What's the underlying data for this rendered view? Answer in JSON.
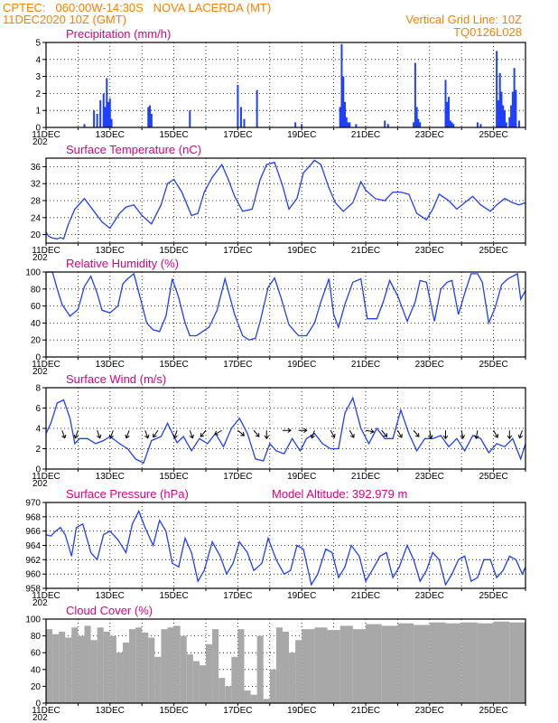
{
  "header": {
    "line1_left": "CPTEC:   060:00W-14:30S   NOVA LACERDA (MT)",
    "line2_left": "11DEC2020 10Z (GMT)",
    "line2_right": "Vertical Grid Line: 10Z",
    "line3_right": "TQ0126L028"
  },
  "colors": {
    "header": "#ff7f00",
    "panel_title": "#e0007f",
    "series": "#1f3fff",
    "cloud": "#a8a8a8",
    "wind_arrow": "#000000"
  },
  "x_axis": {
    "start": "2020-12-11T10Z",
    "end": "2020-12-26T10Z",
    "tick_labels": [
      "11DEC",
      "13DEC",
      "15DEC",
      "17DEC",
      "19DEC",
      "21DEC",
      "23DEC",
      "25DEC"
    ],
    "cut_off_year_label": "202"
  },
  "chart_data": [
    {
      "type": "bar",
      "title": "Precipitation (mm/h)",
      "ylim": [
        0,
        5
      ],
      "yticks": [
        "0",
        "1",
        "2",
        "3",
        "4",
        "5"
      ],
      "grid": true,
      "x_unit": "days since 11DEC 10Z",
      "x": [
        1.2,
        1.5,
        1.6,
        1.7,
        1.8,
        1.85,
        1.9,
        1.95,
        2.0,
        2.05,
        3.2,
        3.25,
        3.3,
        4.5,
        6.0,
        6.1,
        6.2,
        6.6,
        7.8,
        8.0,
        9.2,
        9.25,
        9.3,
        9.35,
        9.4,
        9.45,
        9.5,
        9.7,
        10.6,
        10.7,
        11.5,
        11.55,
        11.6,
        11.65,
        11.7,
        12.5,
        12.55,
        12.6,
        12.65,
        12.7,
        12.75,
        13.5,
        13.6,
        14.1,
        14.15,
        14.2,
        14.25,
        14.3,
        14.35,
        14.4,
        14.5,
        14.55,
        14.6,
        14.65,
        14.7,
        14.8
      ],
      "values": [
        0.2,
        1.0,
        0.8,
        1.6,
        2.0,
        1.2,
        2.9,
        1.5,
        1.7,
        0.5,
        1.2,
        1.3,
        0.8,
        1.0,
        2.5,
        1.2,
        0.5,
        2.2,
        0.3,
        0.2,
        1.2,
        4.9,
        3.0,
        1.5,
        0.6,
        0.3,
        0.3,
        0.2,
        0.4,
        0.2,
        0.3,
        3.8,
        1.2,
        0.5,
        0.3,
        2.8,
        1.5,
        1.8,
        0.4,
        0.3,
        0.2,
        0.3,
        0.2,
        4.5,
        1.6,
        3.2,
        2.1,
        1.3,
        1.0,
        0.3,
        0.6,
        1.3,
        2.1,
        3.5,
        2.2,
        0.4
      ]
    },
    {
      "type": "line",
      "title": "Surface Temperature (nC)",
      "ylim": [
        18,
        38
      ],
      "yticks": [
        "20",
        "24",
        "28",
        "32",
        "36"
      ],
      "grid": true,
      "x_unit": "days since 11DEC 10Z",
      "x": [
        0,
        0.1,
        0.2,
        0.35,
        0.45,
        0.55,
        0.7,
        0.9,
        1.2,
        1.5,
        1.75,
        2.0,
        2.3,
        2.5,
        2.75,
        3.0,
        3.3,
        3.6,
        3.8,
        4.0,
        4.25,
        4.55,
        4.75,
        4.95,
        5.2,
        5.5,
        5.7,
        5.9,
        6.15,
        6.45,
        6.7,
        6.9,
        7.15,
        7.4,
        7.6,
        7.85,
        8.05,
        8.4,
        8.6,
        8.85,
        9.05,
        9.3,
        9.6,
        9.85,
        10.0,
        10.3,
        10.6,
        10.85,
        11.1,
        11.35,
        11.6,
        11.9,
        12.1,
        12.3,
        12.6,
        12.85,
        13.1,
        13.35,
        13.6,
        13.9,
        14.1,
        14.35,
        14.6,
        14.8,
        15.0
      ],
      "values": [
        20.5,
        19.5,
        19.2,
        19.0,
        19.3,
        19.0,
        22.5,
        26.0,
        28.5,
        25.5,
        23.0,
        21.5,
        25.0,
        26.5,
        27.0,
        24.5,
        22.5,
        27.0,
        32.0,
        33.0,
        30.0,
        24.5,
        25.0,
        30.0,
        33.5,
        36.5,
        33.0,
        29.0,
        25.5,
        26.0,
        33.0,
        36.5,
        37.0,
        31.5,
        26.0,
        28.5,
        34.5,
        37.5,
        36.5,
        31.0,
        27.5,
        25.5,
        27.5,
        32.5,
        30.5,
        28.5,
        28.0,
        30.0,
        30.0,
        29.5,
        25.0,
        23.5,
        26.0,
        29.5,
        28.0,
        26.0,
        27.5,
        29.0,
        27.0,
        25.5,
        27.0,
        28.5,
        27.5,
        27.0,
        27.5
      ]
    },
    {
      "type": "line",
      "title": "Relative Humidity (%)",
      "ylim": [
        0,
        100
      ],
      "yticks": [
        "0",
        "20",
        "40",
        "60",
        "80",
        "100"
      ],
      "grid": true,
      "x_unit": "days since 11DEC 10Z",
      "x": [
        0,
        0.2,
        0.35,
        0.5,
        0.75,
        1.0,
        1.2,
        1.4,
        1.6,
        1.75,
        2.0,
        2.25,
        2.4,
        2.55,
        2.75,
        3.0,
        3.15,
        3.35,
        3.55,
        3.75,
        3.95,
        4.15,
        4.35,
        4.5,
        4.7,
        4.9,
        5.1,
        5.35,
        5.6,
        5.9,
        6.15,
        6.35,
        6.55,
        6.7,
        6.95,
        7.15,
        7.35,
        7.6,
        7.9,
        8.15,
        8.4,
        8.6,
        8.85,
        9.0,
        9.15,
        9.35,
        9.6,
        9.85,
        10.05,
        10.35,
        10.55,
        10.75,
        11.0,
        11.3,
        11.55,
        11.7,
        11.9,
        12.15,
        12.35,
        12.55,
        12.7,
        12.9,
        13.1,
        13.3,
        13.5,
        13.65,
        13.85,
        14.05,
        14.25,
        14.45,
        14.6,
        14.75,
        14.85,
        15.0
      ],
      "values": [
        100,
        100,
        80,
        62,
        48,
        56,
        83,
        95,
        75,
        55,
        52,
        60,
        86,
        92,
        98,
        62,
        40,
        32,
        30,
        48,
        92,
        70,
        40,
        25,
        25,
        30,
        35,
        55,
        92,
        50,
        25,
        20,
        22,
        42,
        82,
        93,
        70,
        38,
        25,
        25,
        40,
        65,
        92,
        50,
        35,
        62,
        88,
        92,
        45,
        45,
        65,
        90,
        72,
        42,
        65,
        90,
        88,
        42,
        80,
        88,
        90,
        50,
        75,
        98,
        98,
        88,
        40,
        58,
        85,
        92,
        95,
        98,
        68,
        78
      ]
    },
    {
      "type": "line",
      "title": "Surface Wind (m/s)",
      "ylim": [
        0,
        8
      ],
      "yticks": [
        "0",
        "2",
        "4",
        "6",
        "8"
      ],
      "grid": true,
      "x_unit": "days since 11DEC 10Z",
      "x": [
        0,
        0.15,
        0.35,
        0.55,
        0.75,
        0.9,
        1.05,
        1.3,
        1.55,
        1.8,
        2.0,
        2.3,
        2.55,
        2.8,
        3.05,
        3.3,
        3.6,
        3.8,
        4.1,
        4.3,
        4.55,
        4.8,
        5.05,
        5.3,
        5.55,
        5.8,
        6.05,
        6.3,
        6.55,
        6.8,
        7.0,
        7.2,
        7.45,
        7.7,
        7.95,
        8.15,
        8.4,
        8.65,
        8.9,
        9.15,
        9.35,
        9.6,
        9.85,
        10.1,
        10.35,
        10.6,
        10.85,
        11.1,
        11.35,
        11.6,
        11.85,
        12.1,
        12.35,
        12.6,
        12.85,
        13.1,
        13.35,
        13.6,
        13.85,
        14.1,
        14.35,
        14.6,
        14.85,
        15.0
      ],
      "values": [
        3.5,
        4.5,
        6.5,
        6.8,
        5.0,
        2.5,
        3.0,
        3.0,
        2.5,
        2.8,
        3.2,
        2.5,
        2.0,
        1.0,
        0.6,
        2.8,
        3.2,
        4.5,
        2.6,
        3.2,
        1.8,
        3.0,
        2.5,
        3.5,
        2.2,
        4.0,
        5.0,
        3.5,
        1.0,
        0.8,
        2.5,
        1.8,
        1.5,
        3.0,
        1.8,
        3.0,
        3.5,
        2.5,
        2.0,
        2.0,
        5.5,
        7.0,
        4.0,
        2.5,
        4.0,
        3.0,
        3.0,
        5.8,
        3.5,
        1.8,
        3.0,
        3.0,
        3.3,
        2.2,
        3.0,
        1.8,
        3.3,
        3.0,
        1.6,
        2.5,
        2.2,
        3.0,
        1.0,
        2.5
      ]
    },
    {
      "type": "line",
      "title": "Surface Pressure (hPa)",
      "annotation": "Model Altitude: 392.979  m",
      "ylim": [
        958,
        970
      ],
      "yticks": [
        "958",
        "960",
        "962",
        "964",
        "966",
        "968",
        "970"
      ],
      "grid": true,
      "x_unit": "days since 11DEC 10Z",
      "x": [
        0,
        0.15,
        0.3,
        0.45,
        0.6,
        0.8,
        0.95,
        1.15,
        1.4,
        1.6,
        1.8,
        2.0,
        2.25,
        2.5,
        2.7,
        2.9,
        3.1,
        3.35,
        3.55,
        3.75,
        3.95,
        4.15,
        4.35,
        4.55,
        4.75,
        4.95,
        5.2,
        5.45,
        5.65,
        5.85,
        6.05,
        6.3,
        6.5,
        6.75,
        6.95,
        7.2,
        7.45,
        7.65,
        7.85,
        8.05,
        8.3,
        8.5,
        8.75,
        8.95,
        9.15,
        9.35,
        9.55,
        9.8,
        10.0,
        10.2,
        10.45,
        10.65,
        10.85,
        11.05,
        11.3,
        11.5,
        11.7,
        11.9,
        12.1,
        12.3,
        12.5,
        12.7,
        12.9,
        13.1,
        13.3,
        13.5,
        13.7,
        13.9,
        14.1,
        14.3,
        14.5,
        14.7,
        14.9,
        15.0
      ],
      "values": [
        965.5,
        965.3,
        966.0,
        966.5,
        965.5,
        962.5,
        966.5,
        967.0,
        963.0,
        962.0,
        965.5,
        966.0,
        964.8,
        963.0,
        967.0,
        968.8,
        966.5,
        964.0,
        967.5,
        966.0,
        961.5,
        961.0,
        965.0,
        963.0,
        959.0,
        960.5,
        964.5,
        962.5,
        960.0,
        961.5,
        964.5,
        963.0,
        960.5,
        961.5,
        965.0,
        962.0,
        960.0,
        960.5,
        964.0,
        963.5,
        958.5,
        960.0,
        963.5,
        963.0,
        959.5,
        961.0,
        964.0,
        962.5,
        959.0,
        960.5,
        962.5,
        963.0,
        959.5,
        961.0,
        964.0,
        962.0,
        959.0,
        960.5,
        963.0,
        962.0,
        958.5,
        960.0,
        962.0,
        962.5,
        959.0,
        959.5,
        962.0,
        962.0,
        959.5,
        960.5,
        962.5,
        962.0,
        960.0,
        961.0
      ]
    },
    {
      "type": "area",
      "title": "Cloud Cover (%)",
      "ylim": [
        0,
        100
      ],
      "yticks": [
        "0",
        "20",
        "40",
        "60",
        "80",
        "100"
      ],
      "grid": true,
      "x_unit": "days since 11DEC 10Z",
      "x": [
        0,
        0.2,
        0.4,
        0.6,
        0.8,
        1.0,
        1.2,
        1.4,
        1.6,
        1.8,
        2.0,
        2.2,
        2.4,
        2.6,
        2.8,
        3.0,
        3.2,
        3.4,
        3.6,
        3.8,
        4.0,
        4.2,
        4.4,
        4.6,
        4.8,
        5.0,
        5.2,
        5.4,
        5.6,
        5.8,
        6.0,
        6.2,
        6.4,
        6.6,
        6.8,
        7.0,
        7.2,
        7.4,
        7.6,
        7.8,
        8.0,
        8.4,
        8.8,
        9.2,
        9.6,
        10.0,
        10.5,
        11.0,
        11.5,
        12.0,
        12.5,
        13.0,
        13.5,
        14.0,
        14.5,
        15.0
      ],
      "values": [
        88,
        82,
        85,
        78,
        90,
        80,
        92,
        75,
        90,
        85,
        80,
        60,
        72,
        88,
        90,
        84,
        78,
        55,
        88,
        90,
        92,
        80,
        58,
        50,
        45,
        70,
        88,
        30,
        20,
        55,
        88,
        15,
        10,
        80,
        5,
        40,
        90,
        85,
        60,
        75,
        88,
        90,
        87,
        92,
        88,
        94,
        92,
        95,
        93,
        96,
        95,
        96,
        95,
        97,
        96,
        97
      ]
    }
  ],
  "wind_arrows": {
    "x_unit": "days since 11DEC 10Z",
    "note_units": "direction degrees the arrow points toward (0 = up)",
    "x": [
      0.5,
      1.0,
      1.6,
      2.1,
      2.6,
      3.1,
      3.5,
      4.1,
      4.5,
      5.0,
      5.5,
      6.0,
      6.5,
      6.9,
      7.4,
      7.9,
      8.4,
      8.9,
      9.5,
      10.0,
      10.5,
      11.0,
      11.5,
      12.0,
      12.5,
      13.0,
      13.5,
      14.0,
      14.5,
      14.9
    ],
    "dir": [
      160,
      200,
      160,
      200,
      200,
      160,
      215,
      200,
      160,
      220,
      240,
      130,
      140,
      180,
      90,
      90,
      200,
      150,
      150,
      100,
      140,
      150,
      140,
      170,
      180,
      170,
      190,
      150,
      180,
      200
    ]
  }
}
